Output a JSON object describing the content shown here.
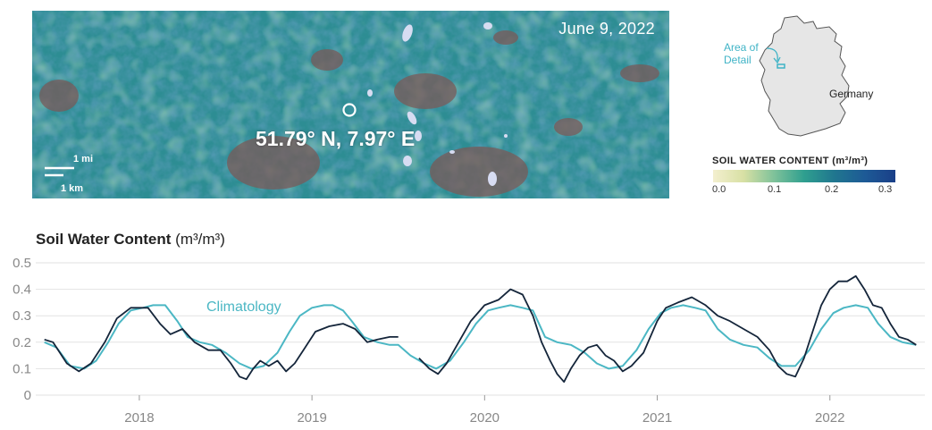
{
  "map": {
    "date": "June 9, 2022",
    "coordinates": "51.79° N, 7.97° E",
    "scale_mi": "1 mi",
    "scale_km": "1 km"
  },
  "locator": {
    "area_label_line1": "Area of",
    "area_label_line2": "Detail",
    "country": "Germany"
  },
  "legend": {
    "title": "SOIL WATER CONTENT (m³/m³)",
    "ticks": [
      "0.0",
      "0.1",
      "0.2",
      "0.3"
    ]
  },
  "colors": {
    "observed": "#14253a",
    "climatology": "#4bb7c4",
    "grid": "#e2e2e2"
  },
  "chart_data": {
    "type": "line",
    "title": "Soil Water Content",
    "title_unit": "(m³/m³)",
    "ylim": [
      0,
      0.5
    ],
    "y_ticks": [
      0,
      0.1,
      0.2,
      0.3,
      0.4,
      0.5
    ],
    "y_tick_labels": [
      "0",
      "0.1",
      "0.2",
      "0.3",
      "0.4",
      "0.5"
    ],
    "xlim": [
      2017.4,
      2022.55
    ],
    "x_ticks": [
      2018,
      2019,
      2020,
      2021,
      2022
    ],
    "x_tick_labels": [
      "2018",
      "2019",
      "2020",
      "2021",
      "2022"
    ],
    "grid": true,
    "annotation": "Climatology",
    "series": [
      {
        "name": "",
        "role": "observed",
        "x": [
          2017.45,
          2017.5,
          2017.58,
          2017.65,
          2017.72,
          2017.8,
          2017.87,
          2017.95,
          2018.05,
          2018.12,
          2018.18,
          2018.25,
          2018.32,
          2018.4,
          2018.47,
          2018.53,
          2018.58,
          2018.62,
          2018.66,
          2018.7,
          2018.75,
          2018.8,
          2018.85,
          2018.9,
          2018.95,
          2019.02,
          2019.1,
          2019.18,
          2019.25,
          2019.32,
          2019.38,
          2019.45,
          2019.5
        ],
        "y": [
          0.21,
          0.2,
          0.12,
          0.09,
          0.12,
          0.2,
          0.29,
          0.33,
          0.33,
          0.27,
          0.23,
          0.25,
          0.2,
          0.17,
          0.17,
          0.12,
          0.07,
          0.06,
          0.1,
          0.13,
          0.11,
          0.13,
          0.09,
          0.12,
          0.17,
          0.24,
          0.26,
          0.27,
          0.25,
          0.2,
          0.21,
          0.22,
          0.22
        ]
      },
      {
        "name": "",
        "role": "observed",
        "x": [
          2019.62,
          2019.68,
          2019.73,
          2019.78,
          2019.85,
          2019.92,
          2020.0,
          2020.08,
          2020.15,
          2020.22,
          2020.28,
          2020.33,
          2020.38,
          2020.42,
          2020.46,
          2020.5,
          2020.55,
          2020.6,
          2020.65,
          2020.7,
          2020.75,
          2020.8,
          2020.85,
          2020.92,
          2021.0,
          2021.05,
          2021.12,
          2021.2,
          2021.28,
          2021.35,
          2021.42,
          2021.5,
          2021.58,
          2021.65,
          2021.7,
          2021.75,
          2021.8,
          2021.85,
          2021.9,
          2021.95,
          2022.0,
          2022.05,
          2022.1,
          2022.15,
          2022.2,
          2022.25,
          2022.3,
          2022.35,
          2022.4,
          2022.45,
          2022.5
        ],
        "y": [
          0.14,
          0.1,
          0.08,
          0.12,
          0.2,
          0.28,
          0.34,
          0.36,
          0.4,
          0.38,
          0.3,
          0.2,
          0.13,
          0.08,
          0.05,
          0.1,
          0.15,
          0.18,
          0.19,
          0.15,
          0.13,
          0.09,
          0.11,
          0.16,
          0.28,
          0.33,
          0.35,
          0.37,
          0.34,
          0.3,
          0.28,
          0.25,
          0.22,
          0.17,
          0.11,
          0.08,
          0.07,
          0.14,
          0.24,
          0.34,
          0.4,
          0.43,
          0.43,
          0.45,
          0.4,
          0.34,
          0.33,
          0.27,
          0.22,
          0.21,
          0.19
        ]
      },
      {
        "name": "Climatology",
        "role": "climatology",
        "x": [
          2017.45,
          2017.52,
          2017.6,
          2017.68,
          2017.75,
          2017.82,
          2017.88,
          2017.95,
          2018.02,
          2018.08,
          2018.15,
          2018.22,
          2018.28,
          2018.35,
          2018.42,
          2018.5,
          2018.58,
          2018.65,
          2018.72,
          2018.8,
          2018.87,
          2018.93,
          2019.0,
          2019.07,
          2019.12,
          2019.18,
          2019.23,
          2019.3,
          2019.38,
          2019.45,
          2019.5,
          2019.57,
          2019.65,
          2019.72,
          2019.8,
          2019.88,
          2019.95,
          2020.02,
          2020.08,
          2020.15,
          2020.22,
          2020.28,
          2020.35,
          2020.42,
          2020.5,
          2020.58,
          2020.65,
          2020.72,
          2020.8,
          2020.88,
          2020.95,
          2021.02,
          2021.08,
          2021.15,
          2021.22,
          2021.28,
          2021.35,
          2021.42,
          2021.5,
          2021.58,
          2021.65,
          2021.72,
          2021.8,
          2021.88,
          2021.95,
          2022.02,
          2022.08,
          2022.15,
          2022.22,
          2022.28,
          2022.35,
          2022.42,
          2022.5
        ],
        "y": [
          0.2,
          0.18,
          0.11,
          0.1,
          0.13,
          0.2,
          0.27,
          0.32,
          0.33,
          0.34,
          0.34,
          0.28,
          0.22,
          0.2,
          0.19,
          0.16,
          0.12,
          0.1,
          0.11,
          0.16,
          0.24,
          0.3,
          0.33,
          0.34,
          0.34,
          0.32,
          0.28,
          0.22,
          0.2,
          0.19,
          0.19,
          0.15,
          0.12,
          0.1,
          0.13,
          0.2,
          0.27,
          0.32,
          0.33,
          0.34,
          0.33,
          0.32,
          0.22,
          0.2,
          0.19,
          0.16,
          0.12,
          0.1,
          0.11,
          0.17,
          0.25,
          0.31,
          0.33,
          0.34,
          0.33,
          0.32,
          0.25,
          0.21,
          0.19,
          0.18,
          0.14,
          0.11,
          0.11,
          0.17,
          0.25,
          0.31,
          0.33,
          0.34,
          0.33,
          0.27,
          0.22,
          0.2,
          0.19
        ]
      }
    ]
  }
}
